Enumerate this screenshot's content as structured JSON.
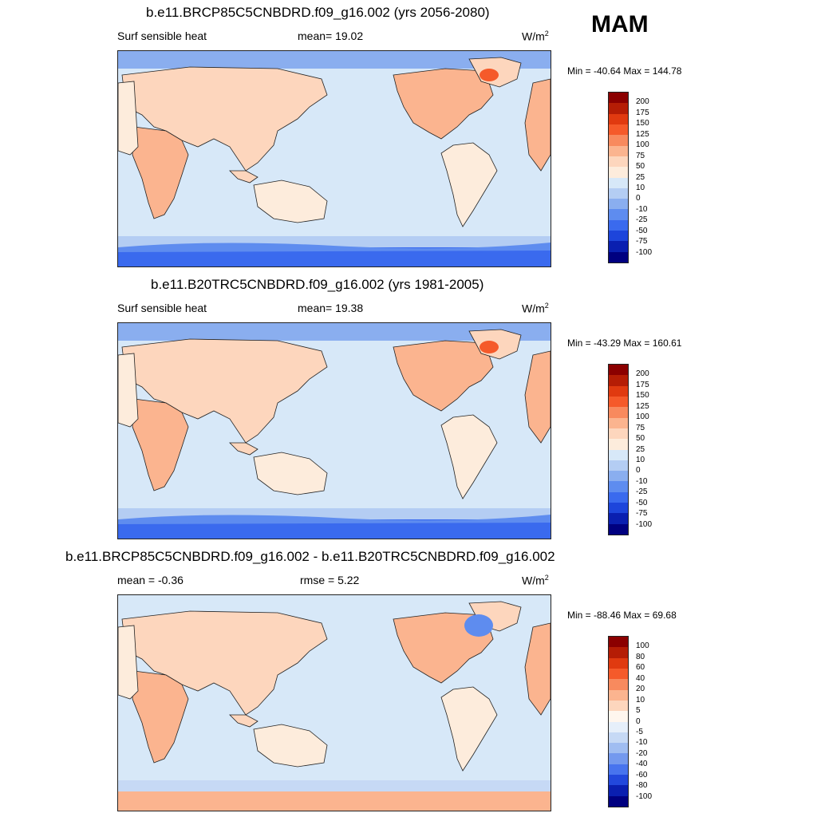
{
  "season": "MAM",
  "panels": [
    {
      "id": "future",
      "title": "b.e11.BRCP85C5CNBDRD.f09_g16.002 (yrs 2056-2080)",
      "left_label": "Surf sensible heat",
      "mid_label": "mean=  19.02",
      "units": "W/m",
      "units_sup": "2",
      "minmax": "Min = -40.64 Max = 144.78",
      "scale": "abs"
    },
    {
      "id": "historical",
      "title": "b.e11.B20TRC5CNBDRD.f09_g16.002 (yrs 1981-2005)",
      "left_label": "Surf sensible heat",
      "mid_label": "mean=  19.38",
      "units": "W/m",
      "units_sup": "2",
      "minmax": "Min = -43.29 Max = 160.61",
      "scale": "abs"
    },
    {
      "id": "difference",
      "title": "b.e11.BRCP85C5CNBDRD.f09_g16.002 - b.e11.B20TRC5CNBDRD.f09_g16.002",
      "left_label": "mean =  -0.36",
      "mid_label": "rmse =   5.22",
      "units": "W/m",
      "units_sup": "2",
      "minmax": "Min = -88.46 Max =  69.68",
      "scale": "diff"
    }
  ],
  "colorbars": {
    "abs": {
      "labels": [
        "200",
        "175",
        "150",
        "125",
        "100",
        "75",
        "50",
        "25",
        "10",
        "0",
        "-10",
        "-25",
        "-50",
        "-75",
        "-100"
      ],
      "colors": [
        "#8b0000",
        "#b51d05",
        "#e03a10",
        "#f55a2a",
        "#f88a5e",
        "#fbb48f",
        "#fdd6bd",
        "#fdecdc",
        "#d7e8f8",
        "#b4cdf3",
        "#8aaeef",
        "#5e8cef",
        "#3a6aee",
        "#1d45db",
        "#0a1fb0",
        "#000080"
      ]
    },
    "diff": {
      "labels": [
        "100",
        "80",
        "60",
        "40",
        "20",
        "10",
        "5",
        "0",
        "-5",
        "-10",
        "-20",
        "-40",
        "-60",
        "-80",
        "-100"
      ],
      "colors": [
        "#8b0000",
        "#b51d05",
        "#e03a10",
        "#f55a2a",
        "#f88a5e",
        "#fbb48f",
        "#fdd6bd",
        "#fff6ee",
        "#e6effa",
        "#c6d9f5",
        "#a0bdf1",
        "#7499ee",
        "#4874ee",
        "#2248dc",
        "#0a1fb0",
        "#000080"
      ]
    }
  }
}
